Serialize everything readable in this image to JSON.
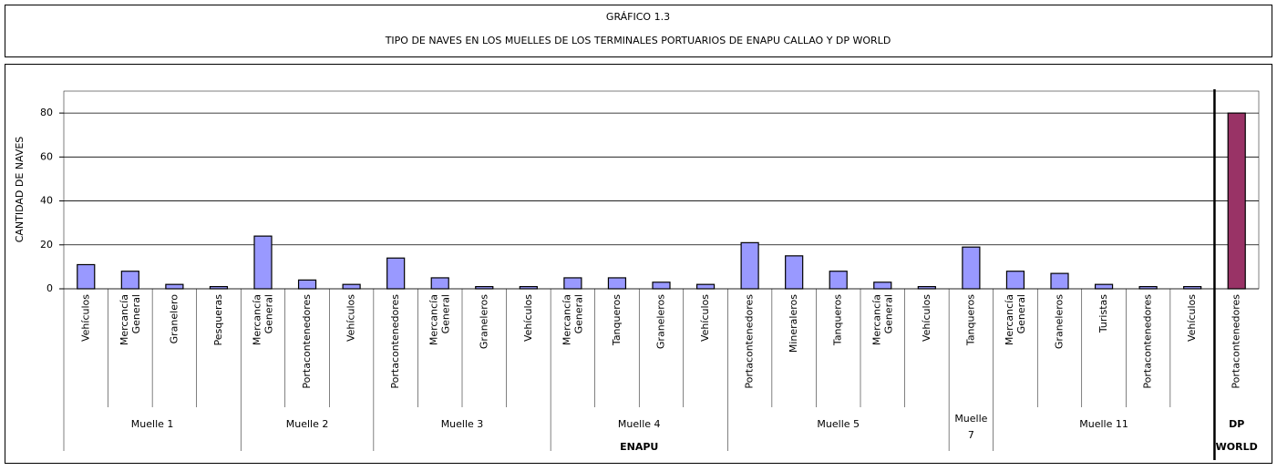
{
  "chart_data": {
    "type": "bar",
    "title": "GRÁFICO 1.3",
    "subtitle": "TIPO DE NAVES EN LOS MUELLES DE LOS TERMINALES PORTUARIOS DE ENAPU CALLAO Y DP WORLD",
    "y_label": "CANTIDAD DE NAVES",
    "categories": [
      "Vehículos",
      "Mercancía General",
      "Granelero",
      "Pesqueras",
      "Mercancía General",
      "Portacontenedores",
      "Vehículos",
      "Portacontenedores",
      "Mercancía General",
      "Graneleros",
      "Vehículos",
      "Mercancía General",
      "Tanqueros",
      "Graneleros",
      "Vehículos",
      "Portacontenedores",
      "Mineraleros",
      "Tanqueros",
      "Mercancía General",
      "Vehículos",
      "Tanqueros",
      "Mercancía General",
      "Graneleros",
      "Turistas",
      "Portacontenedores",
      "Vehículos",
      "Portacontenedores"
    ],
    "values": [
      11,
      8,
      2,
      1,
      24,
      4,
      2,
      14,
      5,
      1,
      1,
      5,
      5,
      3,
      2,
      21,
      15,
      8,
      3,
      1,
      19,
      8,
      7,
      2,
      1,
      1,
      80
    ],
    "colors": [
      "#9999ff",
      "#9999ff",
      "#9999ff",
      "#9999ff",
      "#9999ff",
      "#9999ff",
      "#9999ff",
      "#9999ff",
      "#9999ff",
      "#9999ff",
      "#9999ff",
      "#9999ff",
      "#9999ff",
      "#9999ff",
      "#9999ff",
      "#9999ff",
      "#9999ff",
      "#9999ff",
      "#9999ff",
      "#9999ff",
      "#9999ff",
      "#9999ff",
      "#9999ff",
      "#9999ff",
      "#9999ff",
      "#9999ff",
      "#993366"
    ],
    "groups": [
      {
        "label": "Muelle 1",
        "size": 4
      },
      {
        "label": "Muelle 2",
        "size": 3
      },
      {
        "label": "Muelle 3",
        "size": 4
      },
      {
        "label": "Muelle 4",
        "size": 4
      },
      {
        "label": "Muelle 5",
        "size": 5
      },
      {
        "label": "Muelle 7",
        "size": 1
      },
      {
        "label": "Muelle 11",
        "size": 5
      },
      {
        "label": "DP",
        "size": 1
      }
    ],
    "supergroups": [
      {
        "label": "ENAPU",
        "size": 7
      },
      {
        "label": "WORLD",
        "size": 1
      }
    ],
    "ylim": [
      0,
      90
    ],
    "yticks": [
      0,
      20,
      40,
      60,
      80
    ],
    "grid": true
  }
}
